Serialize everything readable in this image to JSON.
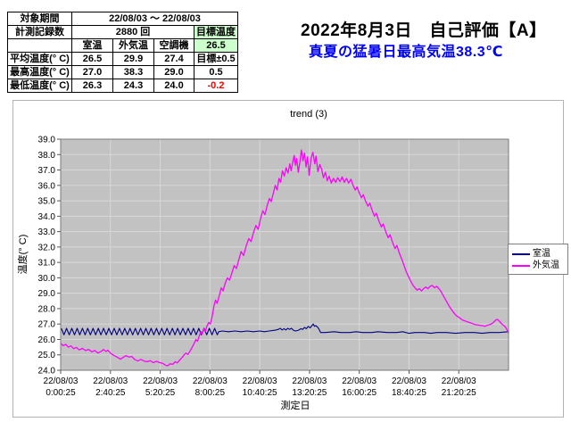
{
  "header": {
    "title": "2022年8月3日　自己評価【A】",
    "subtitle": "真夏の猛暑日最高気温38.3℃",
    "subtitle_color": "#0000ff"
  },
  "summary_table": {
    "period_label": "対象期間",
    "period_value": "22/08/03 ～ 22/08/03",
    "count_label": "計測記録数",
    "count_value": "2880 回",
    "target_header": "目標温度",
    "target_value": "26.5",
    "columns": [
      "室温",
      "外気温",
      "空調機"
    ],
    "rows": [
      {
        "label": "平均温度(° C)",
        "room": "26.5",
        "outdoor": "29.9",
        "ac": "27.4",
        "target": "目標±0.5"
      },
      {
        "label": "最高温度(° C)",
        "room": "27.0",
        "outdoor": "38.3",
        "ac": "29.0",
        "target": "0.5"
      },
      {
        "label": "最低温度(° C)",
        "room": "26.3",
        "outdoor": "24.3",
        "ac": "24.0",
        "target": "-0.2"
      }
    ],
    "highlight_color": "#ccffcc",
    "negative_color": "#ff0000"
  },
  "chart_data": {
    "type": "line",
    "title": "trend (3)",
    "xlabel": "測定日",
    "ylabel": "温度(° C)",
    "ylim": [
      24.0,
      39.0
    ],
    "y_tick_labels": [
      "39.0",
      "38.0",
      "37.0",
      "36.0",
      "35.0",
      "34.0",
      "33.0",
      "32.0",
      "31.0",
      "30.0",
      "29.0",
      "28.0",
      "27.0",
      "26.0",
      "25.0",
      "24.0"
    ],
    "x_total_minutes": 1440,
    "x_ticks": [
      {
        "date": "22/08/03",
        "time": "0:00:25",
        "minute": 0
      },
      {
        "date": "22/08/03",
        "time": "2:40:25",
        "minute": 160
      },
      {
        "date": "22/08/03",
        "time": "5:20:25",
        "minute": 320
      },
      {
        "date": "22/08/03",
        "time": "8:00:25",
        "minute": 480
      },
      {
        "date": "22/08/03",
        "time": "10:40:25",
        "minute": 640
      },
      {
        "date": "22/08/03",
        "time": "13:20:25",
        "minute": 800
      },
      {
        "date": "22/08/03",
        "time": "16:00:25",
        "minute": 960
      },
      {
        "date": "22/08/03",
        "time": "18:40:25",
        "minute": 1120
      },
      {
        "date": "22/08/03",
        "time": "21:20:25",
        "minute": 1280
      }
    ],
    "plot_bg": "#c2c2c2",
    "grid_color": "#d8d8d8",
    "plot_border": "#7a7a7a",
    "legend_position": "right",
    "series": [
      {
        "name": "室温",
        "color": "#000080",
        "zigzag": {
          "t0": 2,
          "t1": 505,
          "high": 26.72,
          "low": 26.3,
          "period": 17
        },
        "points": [
          [
            508,
            26.5
          ],
          [
            520,
            26.55
          ],
          [
            540,
            26.5
          ],
          [
            560,
            26.55
          ],
          [
            580,
            26.5
          ],
          [
            600,
            26.55
          ],
          [
            620,
            26.5
          ],
          [
            640,
            26.55
          ],
          [
            655,
            26.5
          ],
          [
            670,
            26.55
          ],
          [
            690,
            26.6
          ],
          [
            700,
            26.65
          ],
          [
            706,
            26.72
          ],
          [
            712,
            26.62
          ],
          [
            718,
            26.7
          ],
          [
            724,
            26.62
          ],
          [
            730,
            26.72
          ],
          [
            736,
            26.65
          ],
          [
            742,
            26.72
          ],
          [
            748,
            26.6
          ],
          [
            755,
            26.55
          ],
          [
            765,
            26.6
          ],
          [
            772,
            26.7
          ],
          [
            778,
            26.65
          ],
          [
            784,
            26.78
          ],
          [
            790,
            26.7
          ],
          [
            796,
            26.85
          ],
          [
            802,
            26.75
          ],
          [
            808,
            26.9
          ],
          [
            812,
            27.0
          ],
          [
            816,
            26.85
          ],
          [
            820,
            26.9
          ],
          [
            826,
            26.8
          ],
          [
            831,
            26.65
          ],
          [
            836,
            26.45
          ],
          [
            850,
            26.45
          ],
          [
            880,
            26.5
          ],
          [
            900,
            26.45
          ],
          [
            930,
            26.45
          ],
          [
            950,
            26.5
          ],
          [
            970,
            26.45
          ],
          [
            1000,
            26.45
          ],
          [
            1020,
            26.5
          ],
          [
            1050,
            26.45
          ],
          [
            1080,
            26.45
          ],
          [
            1100,
            26.5
          ],
          [
            1120,
            26.4
          ],
          [
            1140,
            26.45
          ],
          [
            1170,
            26.45
          ],
          [
            1190,
            26.4
          ],
          [
            1210,
            26.45
          ],
          [
            1240,
            26.45
          ],
          [
            1270,
            26.4
          ],
          [
            1300,
            26.45
          ],
          [
            1330,
            26.45
          ],
          [
            1355,
            26.4
          ],
          [
            1380,
            26.45
          ],
          [
            1410,
            26.45
          ],
          [
            1440,
            26.5
          ]
        ]
      },
      {
        "name": "外気温",
        "color": "#ff00ff",
        "points": [
          [
            0,
            25.75
          ],
          [
            8,
            25.6
          ],
          [
            16,
            25.68
          ],
          [
            25,
            25.5
          ],
          [
            33,
            25.58
          ],
          [
            42,
            25.4
          ],
          [
            50,
            25.48
          ],
          [
            60,
            25.32
          ],
          [
            70,
            25.42
          ],
          [
            80,
            25.28
          ],
          [
            90,
            25.35
          ],
          [
            100,
            25.2
          ],
          [
            110,
            25.28
          ],
          [
            120,
            25.12
          ],
          [
            130,
            25.22
          ],
          [
            138,
            25.35
          ],
          [
            146,
            25.22
          ],
          [
            152,
            25.3
          ],
          [
            162,
            25.08
          ],
          [
            172,
            24.95
          ],
          [
            182,
            24.85
          ],
          [
            192,
            24.72
          ],
          [
            200,
            24.82
          ],
          [
            210,
            24.95
          ],
          [
            220,
            24.85
          ],
          [
            228,
            24.9
          ],
          [
            238,
            24.7
          ],
          [
            248,
            24.6
          ],
          [
            258,
            24.7
          ],
          [
            268,
            24.6
          ],
          [
            278,
            24.55
          ],
          [
            288,
            24.62
          ],
          [
            298,
            24.5
          ],
          [
            308,
            24.58
          ],
          [
            318,
            24.5
          ],
          [
            328,
            24.45
          ],
          [
            338,
            24.32
          ],
          [
            345,
            24.3
          ],
          [
            352,
            24.42
          ],
          [
            360,
            24.38
          ],
          [
            368,
            24.55
          ],
          [
            375,
            24.48
          ],
          [
            382,
            24.65
          ],
          [
            390,
            24.82
          ],
          [
            397,
            25.0
          ],
          [
            403,
            25.12
          ],
          [
            409,
            25.02
          ],
          [
            416,
            25.25
          ],
          [
            423,
            25.5
          ],
          [
            429,
            25.75
          ],
          [
            435,
            26.0
          ],
          [
            440,
            25.88
          ],
          [
            446,
            26.25
          ],
          [
            451,
            26.5
          ],
          [
            455,
            26.35
          ],
          [
            460,
            26.68
          ],
          [
            465,
            26.5
          ],
          [
            470,
            26.85
          ],
          [
            476,
            27.1
          ],
          [
            481,
            27.0
          ],
          [
            487,
            27.5
          ],
          [
            493,
            28.2
          ],
          [
            498,
            28.55
          ],
          [
            503,
            28.35
          ],
          [
            510,
            28.85
          ],
          [
            516,
            29.35
          ],
          [
            522,
            29.15
          ],
          [
            529,
            29.65
          ],
          [
            536,
            30.0
          ],
          [
            543,
            29.85
          ],
          [
            551,
            30.35
          ],
          [
            558,
            30.8
          ],
          [
            565,
            30.6
          ],
          [
            573,
            31.2
          ],
          [
            580,
            31.7
          ],
          [
            588,
            31.45
          ],
          [
            597,
            32.1
          ],
          [
            605,
            32.55
          ],
          [
            612,
            32.35
          ],
          [
            620,
            32.95
          ],
          [
            628,
            33.4
          ],
          [
            635,
            33.15
          ],
          [
            643,
            33.9
          ],
          [
            650,
            34.35
          ],
          [
            657,
            34.1
          ],
          [
            664,
            34.7
          ],
          [
            671,
            35.15
          ],
          [
            677,
            34.95
          ],
          [
            684,
            35.5
          ],
          [
            690,
            36.0
          ],
          [
            696,
            35.7
          ],
          [
            702,
            36.45
          ],
          [
            707,
            36.2
          ],
          [
            713,
            36.95
          ],
          [
            719,
            36.6
          ],
          [
            725,
            37.15
          ],
          [
            731,
            36.8
          ],
          [
            737,
            37.4
          ],
          [
            741,
            36.95
          ],
          [
            747,
            37.6
          ],
          [
            751,
            37.95
          ],
          [
            755,
            37.3
          ],
          [
            759,
            37.75
          ],
          [
            764,
            36.85
          ],
          [
            769,
            37.5
          ],
          [
            774,
            38.3
          ],
          [
            779,
            37.6
          ],
          [
            784,
            38.1
          ],
          [
            789,
            37.2
          ],
          [
            794,
            37.85
          ],
          [
            799,
            36.65
          ],
          [
            805,
            37.75
          ],
          [
            811,
            38.15
          ],
          [
            817,
            37.4
          ],
          [
            821,
            37.9
          ],
          [
            827,
            36.9
          ],
          [
            833,
            37.35
          ],
          [
            839,
            37.05
          ],
          [
            845,
            36.5
          ],
          [
            851,
            36.85
          ],
          [
            857,
            36.3
          ],
          [
            863,
            36.6
          ],
          [
            870,
            36.15
          ],
          [
            877,
            36.45
          ],
          [
            884,
            36.2
          ],
          [
            891,
            36.5
          ],
          [
            898,
            36.25
          ],
          [
            905,
            36.55
          ],
          [
            912,
            36.2
          ],
          [
            919,
            36.45
          ],
          [
            926,
            36.15
          ],
          [
            933,
            36.4
          ],
          [
            940,
            36.0
          ],
          [
            947,
            35.7
          ],
          [
            953,
            35.9
          ],
          [
            960,
            35.5
          ],
          [
            967,
            35.2
          ],
          [
            973,
            35.4
          ],
          [
            980,
            35.0
          ],
          [
            988,
            34.65
          ],
          [
            994,
            34.85
          ],
          [
            1001,
            34.4
          ],
          [
            1009,
            34.0
          ],
          [
            1015,
            34.2
          ],
          [
            1023,
            33.7
          ],
          [
            1031,
            33.3
          ],
          [
            1037,
            33.5
          ],
          [
            1045,
            33.0
          ],
          [
            1053,
            32.6
          ],
          [
            1059,
            32.8
          ],
          [
            1067,
            32.3
          ],
          [
            1075,
            31.9
          ],
          [
            1081,
            32.1
          ],
          [
            1089,
            31.6
          ],
          [
            1097,
            31.2
          ],
          [
            1104,
            30.8
          ],
          [
            1111,
            30.4
          ],
          [
            1118,
            30.1
          ],
          [
            1125,
            29.8
          ],
          [
            1132,
            29.55
          ],
          [
            1139,
            29.35
          ],
          [
            1146,
            29.2
          ],
          [
            1153,
            29.3
          ],
          [
            1160,
            29.15
          ],
          [
            1167,
            29.3
          ],
          [
            1174,
            29.4
          ],
          [
            1181,
            29.3
          ],
          [
            1188,
            29.45
          ],
          [
            1195,
            29.5
          ],
          [
            1202,
            29.35
          ],
          [
            1209,
            29.45
          ],
          [
            1216,
            29.3
          ],
          [
            1223,
            29.1
          ],
          [
            1230,
            28.85
          ],
          [
            1237,
            28.6
          ],
          [
            1244,
            28.35
          ],
          [
            1251,
            28.1
          ],
          [
            1258,
            27.9
          ],
          [
            1265,
            27.7
          ],
          [
            1272,
            27.55
          ],
          [
            1279,
            27.45
          ],
          [
            1286,
            27.35
          ],
          [
            1293,
            27.25
          ],
          [
            1300,
            27.2
          ],
          [
            1307,
            27.15
          ],
          [
            1314,
            27.1
          ],
          [
            1321,
            27.05
          ],
          [
            1328,
            27.0
          ],
          [
            1335,
            26.95
          ],
          [
            1342,
            26.95
          ],
          [
            1349,
            26.9
          ],
          [
            1356,
            26.9
          ],
          [
            1363,
            26.85
          ],
          [
            1370,
            26.9
          ],
          [
            1377,
            26.95
          ],
          [
            1384,
            27.0
          ],
          [
            1391,
            27.1
          ],
          [
            1398,
            27.25
          ],
          [
            1404,
            27.3
          ],
          [
            1410,
            27.2
          ],
          [
            1416,
            27.05
          ],
          [
            1422,
            26.95
          ],
          [
            1428,
            26.85
          ],
          [
            1433,
            26.7
          ],
          [
            1437,
            26.55
          ],
          [
            1440,
            26.4
          ]
        ]
      }
    ]
  }
}
